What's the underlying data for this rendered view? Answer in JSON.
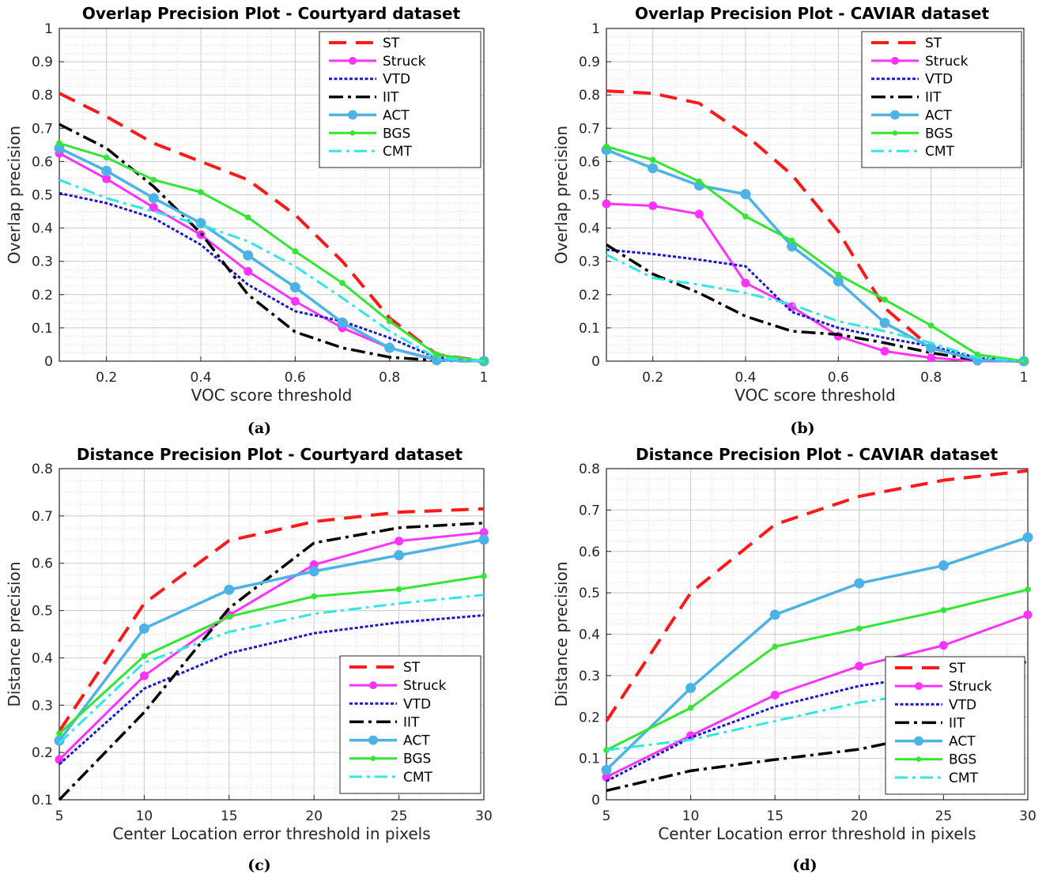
{
  "colors": {
    "ST": "#ff1a1a",
    "Struck": "#ff33ff",
    "VTD": "#1a1acc",
    "IIT": "#000000",
    "ACT": "#4db3e6",
    "BGS": "#33e633",
    "CMT": "#33e6e6"
  },
  "chart_data": [
    {
      "type": "line",
      "caption": "(a)",
      "title": "Overlap Precision Plot - Courtyard dataset",
      "xlabel": "VOC score threshold",
      "ylabel": "Overlap precision",
      "xlim": [
        0.1,
        1
      ],
      "ylim": [
        0,
        1
      ],
      "xticks": [
        0.2,
        0.4,
        0.6,
        0.8,
        1
      ],
      "xtick_labels": [
        "0.2",
        "0.4",
        "0.6",
        "0.8",
        "1"
      ],
      "yticks": [
        0,
        0.1,
        0.2,
        0.3,
        0.4,
        0.5,
        0.6,
        0.7,
        0.8,
        0.9,
        1
      ],
      "ytick_labels": [
        "0",
        "0.1",
        "0.2",
        "0.3",
        "0.4",
        "0.5",
        "0.6",
        "0.7",
        "0.8",
        "0.9",
        "1"
      ],
      "grid": true,
      "legend_position": "top-right",
      "x": [
        0.1,
        0.2,
        0.3,
        0.4,
        0.5,
        0.6,
        0.7,
        0.8,
        0.9,
        1.0
      ],
      "series": [
        {
          "name": "ST",
          "values": [
            0.805,
            0.735,
            0.655,
            0.6,
            0.545,
            0.44,
            0.3,
            0.13,
            0.02,
            0
          ]
        },
        {
          "name": "Struck",
          "values": [
            0.625,
            0.548,
            0.462,
            0.38,
            0.27,
            0.18,
            0.1,
            0.04,
            0.005,
            0
          ]
        },
        {
          "name": "VTD",
          "values": [
            0.505,
            0.475,
            0.43,
            0.35,
            0.23,
            0.15,
            0.12,
            0.07,
            0.01,
            0
          ]
        },
        {
          "name": "IIT",
          "values": [
            0.712,
            0.64,
            0.525,
            0.385,
            0.2,
            0.088,
            0.04,
            0.012,
            0.002,
            0
          ]
        },
        {
          "name": "ACT",
          "values": [
            0.64,
            0.572,
            0.49,
            0.415,
            0.318,
            0.222,
            0.116,
            0.04,
            0.003,
            0
          ]
        },
        {
          "name": "BGS",
          "values": [
            0.655,
            0.612,
            0.545,
            0.508,
            0.432,
            0.33,
            0.235,
            0.12,
            0.02,
            0
          ]
        },
        {
          "name": "CMT",
          "values": [
            0.545,
            0.49,
            0.45,
            0.41,
            0.36,
            0.285,
            0.19,
            0.09,
            0.01,
            0
          ]
        }
      ]
    },
    {
      "type": "line",
      "caption": "(b)",
      "title": "Overlap Precision Plot - CAVIAR dataset",
      "xlabel": "VOC score threshold",
      "ylabel": "Overlap precision",
      "xlim": [
        0.1,
        1
      ],
      "ylim": [
        0,
        1
      ],
      "xticks": [
        0.2,
        0.4,
        0.6,
        0.8,
        1
      ],
      "xtick_labels": [
        "0.2",
        "0.4",
        "0.6",
        "0.8",
        "1"
      ],
      "yticks": [
        0,
        0.1,
        0.2,
        0.3,
        0.4,
        0.5,
        0.6,
        0.7,
        0.8,
        0.9,
        1
      ],
      "ytick_labels": [
        "0",
        "0.1",
        "0.2",
        "0.3",
        "0.4",
        "0.5",
        "0.6",
        "0.7",
        "0.8",
        "0.9",
        "1"
      ],
      "grid": true,
      "legend_position": "top-right",
      "x": [
        0.1,
        0.2,
        0.3,
        0.4,
        0.5,
        0.6,
        0.7,
        0.8,
        0.9,
        1.0
      ],
      "series": [
        {
          "name": "ST",
          "values": [
            0.812,
            0.805,
            0.775,
            0.68,
            0.56,
            0.39,
            0.16,
            0.04,
            0.003,
            0
          ]
        },
        {
          "name": "Struck",
          "values": [
            0.473,
            0.467,
            0.442,
            0.235,
            0.164,
            0.075,
            0.03,
            0.01,
            0,
            0
          ]
        },
        {
          "name": "VTD",
          "values": [
            0.335,
            0.322,
            0.305,
            0.285,
            0.148,
            0.1,
            0.07,
            0.045,
            0.01,
            0
          ]
        },
        {
          "name": "IIT",
          "values": [
            0.35,
            0.262,
            0.205,
            0.135,
            0.09,
            0.08,
            0.055,
            0.025,
            0.003,
            0
          ]
        },
        {
          "name": "ACT",
          "values": [
            0.635,
            0.58,
            0.528,
            0.502,
            0.345,
            0.24,
            0.115,
            0.04,
            0.003,
            0
          ]
        },
        {
          "name": "BGS",
          "values": [
            0.645,
            0.605,
            0.54,
            0.435,
            0.362,
            0.26,
            0.185,
            0.107,
            0.02,
            0
          ]
        },
        {
          "name": "CMT",
          "values": [
            0.32,
            0.25,
            0.23,
            0.205,
            0.17,
            0.12,
            0.09,
            0.055,
            0.01,
            0
          ]
        }
      ]
    },
    {
      "type": "line",
      "caption": "(c)",
      "title": "Distance Precision Plot - Courtyard dataset",
      "xlabel": "Center Location error threshold in pixels",
      "ylabel": "Distance precision",
      "xlim": [
        5,
        30
      ],
      "ylim": [
        0.1,
        0.8
      ],
      "xticks": [
        5,
        10,
        15,
        20,
        25,
        30
      ],
      "xtick_labels": [
        "5",
        "10",
        "15",
        "20",
        "25",
        "30"
      ],
      "yticks": [
        0.1,
        0.2,
        0.3,
        0.4,
        0.5,
        0.6,
        0.7,
        0.8
      ],
      "ytick_labels": [
        "0.1",
        "0.2",
        "0.3",
        "0.4",
        "0.5",
        "0.6",
        "0.7",
        "0.8"
      ],
      "grid": true,
      "legend_position": "bottom-right",
      "x": [
        5,
        10,
        15,
        20,
        25,
        30
      ],
      "series": [
        {
          "name": "ST",
          "values": [
            0.245,
            0.515,
            0.648,
            0.688,
            0.708,
            0.715
          ]
        },
        {
          "name": "Struck",
          "values": [
            0.185,
            0.362,
            0.49,
            0.597,
            0.647,
            0.665
          ]
        },
        {
          "name": "VTD",
          "values": [
            0.175,
            0.335,
            0.41,
            0.452,
            0.475,
            0.49
          ]
        },
        {
          "name": "IIT",
          "values": [
            0.1,
            0.285,
            0.505,
            0.643,
            0.675,
            0.685
          ]
        },
        {
          "name": "ACT",
          "values": [
            0.225,
            0.462,
            0.544,
            0.583,
            0.617,
            0.65
          ]
        },
        {
          "name": "BGS",
          "values": [
            0.24,
            0.404,
            0.487,
            0.53,
            0.545,
            0.573
          ]
        },
        {
          "name": "CMT",
          "values": [
            0.22,
            0.39,
            0.455,
            0.493,
            0.515,
            0.533
          ]
        }
      ]
    },
    {
      "type": "line",
      "caption": "(d)",
      "title": "Distance Precision Plot - CAVIAR dataset",
      "xlabel": "Center Location error threshold in pixels",
      "ylabel": "Distance precision",
      "xlim": [
        5,
        30
      ],
      "ylim": [
        0,
        0.8
      ],
      "xticks": [
        5,
        10,
        15,
        20,
        25,
        30
      ],
      "xtick_labels": [
        "5",
        "10",
        "15",
        "20",
        "25",
        "30"
      ],
      "yticks": [
        0,
        0.1,
        0.2,
        0.3,
        0.4,
        0.5,
        0.6,
        0.7,
        0.8
      ],
      "ytick_labels": [
        "0",
        "0.1",
        "0.2",
        "0.3",
        "0.4",
        "0.5",
        "0.6",
        "0.7",
        "0.8"
      ],
      "grid": true,
      "legend_position": "bottom-right",
      "x": [
        5,
        10,
        15,
        20,
        25,
        30
      ],
      "series": [
        {
          "name": "ST",
          "values": [
            0.19,
            0.5,
            0.665,
            0.733,
            0.772,
            0.795
          ]
        },
        {
          "name": "Struck",
          "values": [
            0.055,
            0.155,
            0.253,
            0.323,
            0.373,
            0.447
          ]
        },
        {
          "name": "VTD",
          "values": [
            0.045,
            0.15,
            0.225,
            0.275,
            0.305,
            0.333
          ]
        },
        {
          "name": "IIT",
          "values": [
            0.022,
            0.07,
            0.097,
            0.122,
            0.165,
            0.22
          ]
        },
        {
          "name": "ACT",
          "values": [
            0.072,
            0.27,
            0.447,
            0.523,
            0.566,
            0.634
          ]
        },
        {
          "name": "BGS",
          "values": [
            0.12,
            0.222,
            0.37,
            0.414,
            0.458,
            0.508
          ]
        },
        {
          "name": "CMT",
          "values": [
            0.12,
            0.145,
            0.19,
            0.235,
            0.265,
            0.295
          ]
        }
      ]
    }
  ]
}
